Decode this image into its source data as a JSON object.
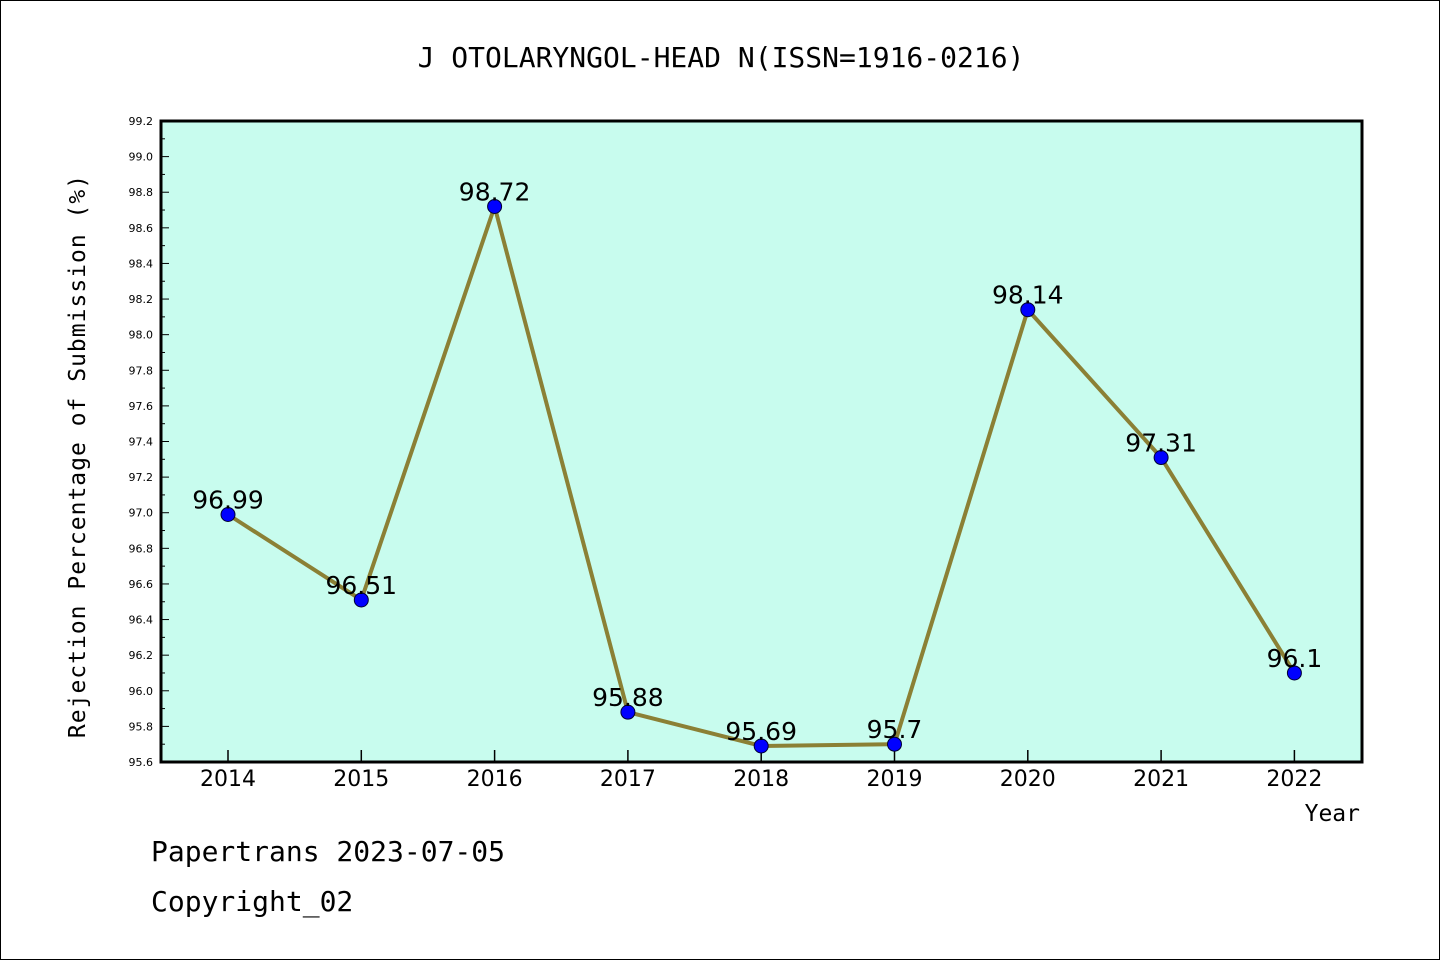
{
  "chart_data": {
    "type": "line",
    "title": "J OTOLARYNGOL-HEAD N(ISSN=1916-0216)",
    "xlabel": "Year",
    "ylabel": "Rejection Percentage of Submission (%)",
    "categories": [
      "2014",
      "2015",
      "2016",
      "2017",
      "2018",
      "2019",
      "2020",
      "2021",
      "2022"
    ],
    "values": [
      96.99,
      96.51,
      98.72,
      95.88,
      95.69,
      95.7,
      98.14,
      97.31,
      96.1
    ],
    "data_labels": [
      "96.99",
      "96.51",
      "98.72",
      "95.88",
      "95.69",
      "95.7",
      "98.14",
      "97.31",
      "96.1"
    ],
    "ylim": [
      95.6,
      99.2
    ],
    "yticks": [
      "95.6",
      "95.8",
      "96.0",
      "96.2",
      "96.4",
      "96.6",
      "96.8",
      "97.0",
      "97.2",
      "97.4",
      "97.6",
      "97.8",
      "98.0",
      "98.2",
      "98.4",
      "98.6",
      "98.8",
      "99.0",
      "99.2"
    ],
    "grid": false,
    "colors": {
      "plot_background": "#c8fcee",
      "line": "#8b8035",
      "marker": "#0000ff"
    }
  },
  "footer": {
    "line1": "Papertrans 2023-07-05",
    "line2": "Copyright_02"
  }
}
